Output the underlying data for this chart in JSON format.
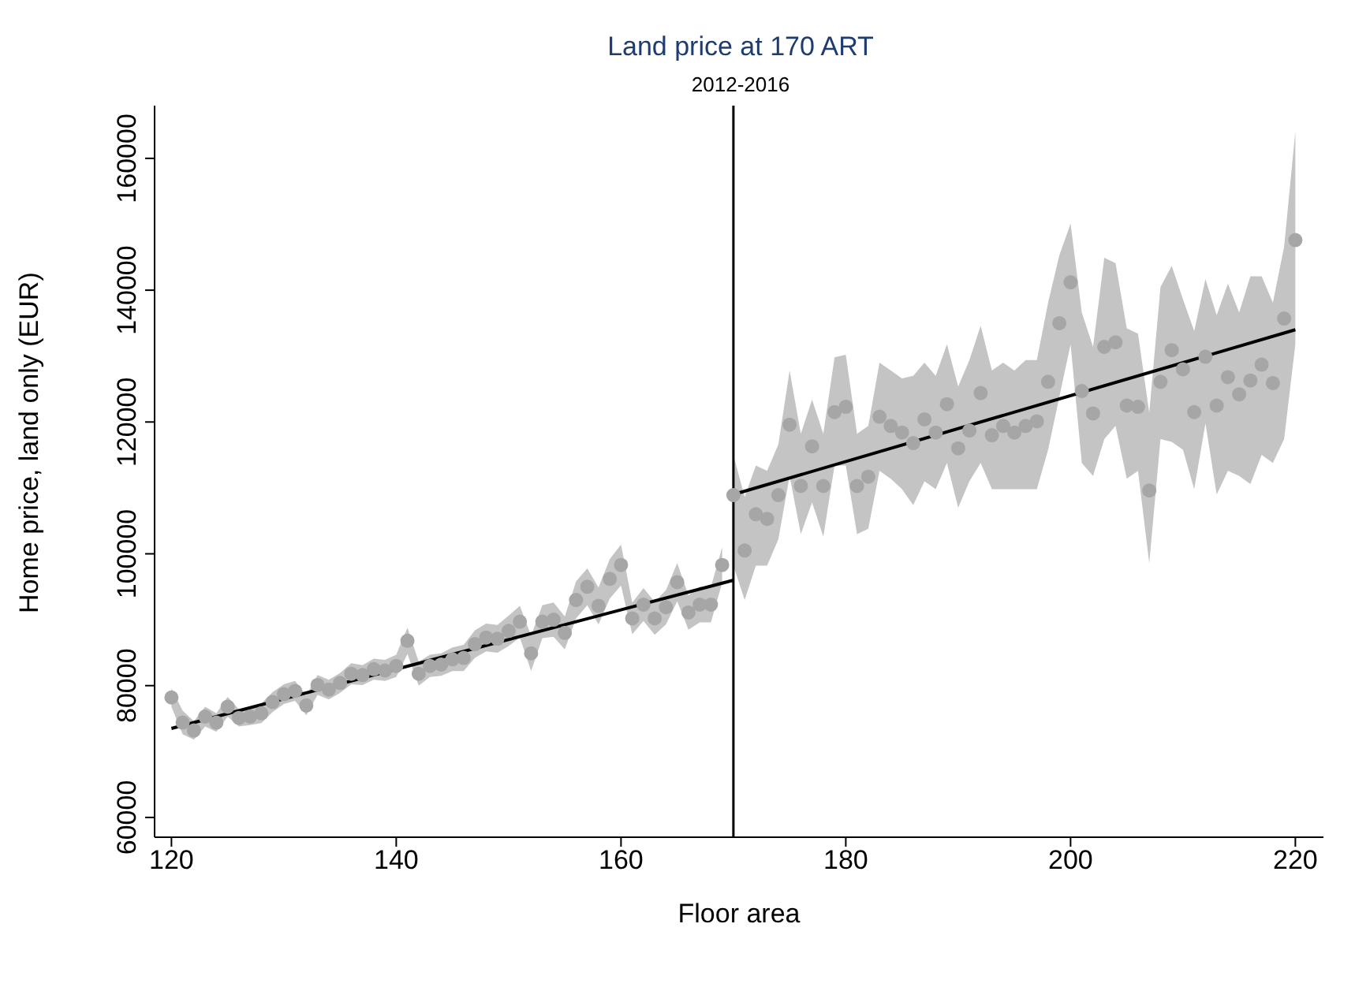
{
  "chart_data": {
    "type": "scatter",
    "title": "Land price at 170 ART",
    "subtitle": "2012-2016",
    "xlabel": "Floor area",
    "ylabel": "Home price, land only (EUR)",
    "xlim": [
      118.5,
      222.5
    ],
    "xticks": [
      120,
      140,
      160,
      180,
      200,
      220
    ],
    "ylim": [
      57000,
      168000
    ],
    "yticks": [
      60000,
      80000,
      100000,
      120000,
      140000,
      160000
    ],
    "grid": false,
    "legend": false,
    "marker": "circle",
    "ref_lines": [
      {
        "axis": "x",
        "value": 170,
        "color": "#000000"
      }
    ],
    "series": [
      {
        "color": "#a6a6a6",
        "x": [
          120,
          121,
          122,
          123,
          124,
          125,
          126,
          127,
          128,
          129,
          130,
          131,
          132,
          133,
          134,
          135,
          136,
          137,
          138,
          139,
          140,
          141,
          142,
          143,
          144,
          145,
          146,
          147,
          148,
          149,
          150,
          151,
          152,
          153,
          154,
          155,
          156,
          157,
          158,
          159,
          160,
          161,
          162,
          163,
          164,
          165,
          166,
          167,
          168,
          169
        ],
        "values": [
          78200,
          74400,
          73200,
          75300,
          74400,
          76800,
          75100,
          75300,
          75800,
          77500,
          78700,
          79200,
          77000,
          80100,
          79400,
          80400,
          81800,
          81600,
          82500,
          82300,
          83000,
          86800,
          81800,
          83000,
          83200,
          84000,
          84200,
          86300,
          87300,
          87100,
          88300,
          89700,
          84900,
          89700,
          90000,
          88000,
          93000,
          95000,
          92100,
          96200,
          98300,
          90200,
          92300,
          90200,
          91900,
          95700,
          91100,
          92300,
          92300,
          98300
        ],
        "lower": [
          76800,
          72600,
          71800,
          73800,
          73000,
          75300,
          73800,
          74000,
          74300,
          76000,
          77200,
          77700,
          75500,
          78600,
          77900,
          78900,
          80200,
          80100,
          80900,
          80700,
          81300,
          84800,
          80000,
          81300,
          81500,
          82200,
          82200,
          84200,
          85200,
          85000,
          86000,
          87300,
          82200,
          87200,
          87400,
          85500,
          90200,
          92200,
          89300,
          93200,
          95200,
          87800,
          89800,
          87700,
          89300,
          92800,
          88500,
          89600,
          89600,
          95600
        ],
        "upper": [
          79600,
          76200,
          74600,
          76800,
          75800,
          78300,
          76400,
          76600,
          77300,
          79000,
          80200,
          80700,
          78500,
          81600,
          80900,
          81900,
          83400,
          83100,
          84100,
          83900,
          84700,
          88800,
          83600,
          84700,
          84900,
          85800,
          86200,
          88400,
          89400,
          89200,
          90600,
          92100,
          87600,
          92200,
          92600,
          90500,
          95800,
          97800,
          94900,
          99200,
          101400,
          92600,
          94800,
          92700,
          94500,
          98600,
          93700,
          95000,
          95000,
          101000
        ]
      },
      {
        "color": "#a6a6a6",
        "x": [
          170,
          171,
          172,
          173,
          174,
          175,
          176,
          177,
          178,
          179,
          180,
          181,
          182,
          183,
          184,
          185,
          186,
          187,
          188,
          189,
          190,
          191,
          192,
          193,
          194,
          195,
          196,
          197,
          198,
          199,
          200,
          201,
          202,
          203,
          204,
          205,
          206,
          207,
          208,
          209,
          210,
          211,
          212,
          213,
          214,
          215,
          216,
          217,
          218,
          219,
          220
        ],
        "values": [
          108900,
          100500,
          106000,
          105300,
          108900,
          119600,
          110300,
          116300,
          110300,
          121500,
          122300,
          110300,
          111700,
          120800,
          119400,
          118400,
          116800,
          120400,
          118400,
          122700,
          116000,
          118700,
          124400,
          118000,
          119400,
          118400,
          119400,
          120100,
          126100,
          135000,
          141200,
          124700,
          121300,
          131400,
          132100,
          122500,
          122300,
          109600,
          126100,
          130900,
          128000,
          121500,
          129900,
          122500,
          126800,
          124200,
          126300,
          128700,
          125900,
          135700,
          147600
        ],
        "lower": [
          98200,
          93000,
          98200,
          98200,
          102200,
          111800,
          103000,
          107800,
          102600,
          113400,
          113400,
          103000,
          103800,
          112600,
          111400,
          109800,
          107400,
          111000,
          109800,
          113800,
          107000,
          111000,
          113800,
          109800,
          109800,
          109800,
          109800,
          109800,
          115800,
          123800,
          131800,
          113800,
          111800,
          117400,
          119400,
          111400,
          112600,
          98600,
          117400,
          117000,
          115800,
          109800,
          119800,
          109000,
          112600,
          111800,
          110600,
          115000,
          113800,
          117400,
          131800
        ],
        "upper": [
          115000,
          108600,
          113400,
          112600,
          116600,
          127800,
          118200,
          123400,
          118200,
          129800,
          130200,
          118200,
          119400,
          129000,
          127800,
          126600,
          127000,
          129000,
          127000,
          131800,
          125400,
          129400,
          134600,
          127800,
          129000,
          127800,
          129400,
          129400,
          138100,
          145300,
          150100,
          136600,
          131400,
          144900,
          144100,
          134200,
          133400,
          121400,
          140500,
          143700,
          138600,
          133800,
          141700,
          136200,
          141000,
          136600,
          142100,
          142100,
          138100,
          146600,
          164100
        ]
      },
      {
        "type": "line",
        "marker": "none",
        "color": "#000000",
        "x": [
          120,
          170
        ],
        "values": [
          73500,
          96000
        ]
      },
      {
        "type": "line",
        "marker": "none",
        "color": "#000000",
        "x": [
          170,
          220
        ],
        "values": [
          109000,
          134000
        ]
      }
    ]
  }
}
